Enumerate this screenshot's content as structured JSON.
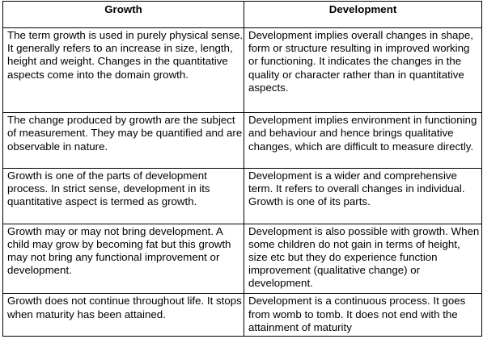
{
  "table": {
    "headers": [
      "Growth",
      "Development"
    ],
    "rows": [
      {
        "growth": "The term growth is used in purely physical sense. It generally refers to an increase in size, length, height and weight. Changes in the quantitative aspects come into the domain growth.",
        "development": "Development implies overall changes in shape, form or structure resulting in improved working or functioning. It indicates the changes in the quality or character rather than in quantitative aspects."
      },
      {
        "growth": "The change produced by growth are the subject of measurement. They may be quantified and are observable in nature.",
        "development": "Development implies environment in functioning and behaviour and hence brings qualitative changes, which are difficult to measure directly."
      },
      {
        "growth": "Growth is one of the parts of development process. In strict sense, development in its quantitative aspect is termed as growth.",
        "development": "Development is a wider and comprehensive term. It refers to overall changes in individual. Growth is one of its parts."
      },
      {
        "growth": "Growth may or may not bring development. A child may grow by becoming fat but this growth may not bring any functional improvement or development.",
        "development": "Development is also possible with growth. When some children do not gain in terms of height, size etc but they do experience function improvement (qualitative change) or development."
      },
      {
        "growth": "Growth does not continue throughout life. It stops when maturity has been attained.",
        "development": "Development is a continuous process. It goes from womb to tomb. It does not end with the attainment of maturity"
      }
    ]
  }
}
